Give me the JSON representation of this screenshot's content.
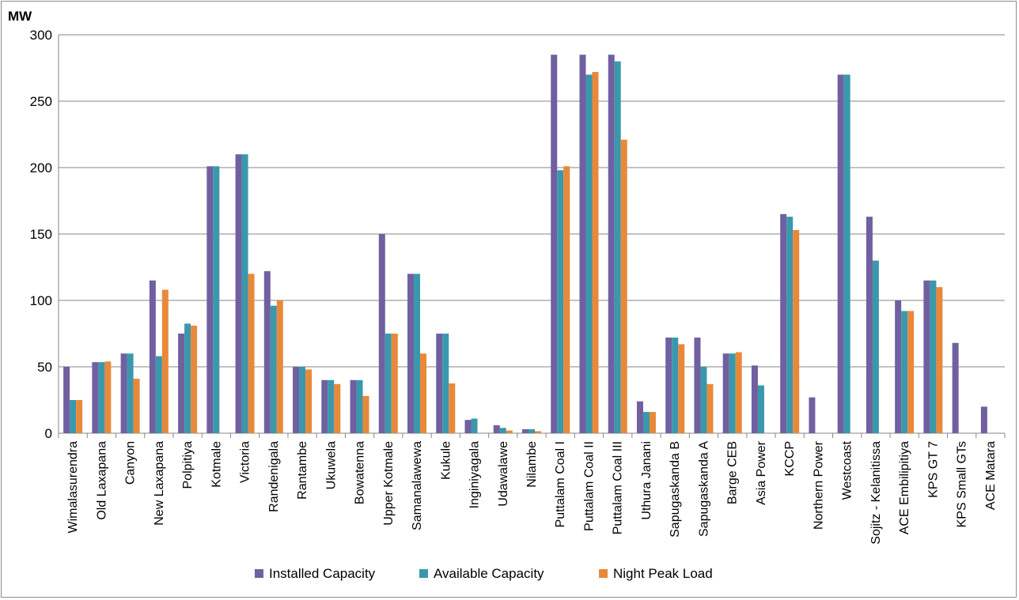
{
  "chart_data": {
    "type": "bar",
    "title": "",
    "ylabel": "MW",
    "xlabel": "",
    "ylim": [
      0,
      300
    ],
    "yticks": [
      0,
      50,
      100,
      150,
      200,
      250,
      300
    ],
    "grid": true,
    "legend_position": "bottom",
    "categories": [
      "Wimalasurendra",
      "Old Laxapana",
      "Canyon",
      "New Laxapana",
      "Polpitiya",
      "Kotmale",
      "Victoria",
      "Randenigala",
      "Rantambe",
      "Ukuwela",
      "Bowatenna",
      "Upper Kotmale",
      "Samanalawewa",
      "Kukule",
      "Inginiyagala",
      "Udawalawe",
      "Nilambe",
      "Puttalam Coal I",
      "Puttalam Coal II",
      "Puttalam Coal III",
      "Uthura Janani",
      "Sapugaskanda B",
      "Sapugaskanda A",
      "Barge CEB",
      "Asia Power",
      "KCCP",
      "Northern Power",
      "Westcoast",
      "Sojitz - Kelanitissa",
      "ACE Embilipitiya",
      "KPS GT 7",
      "KPS Small GTs",
      "ACE Matara"
    ],
    "series": [
      {
        "name": "Installed Capacity",
        "color": "#7060A0",
        "values": [
          50,
          53.5,
          60,
          115,
          75,
          201,
          210,
          122,
          50,
          40,
          40,
          150,
          120,
          75,
          10,
          6,
          3,
          285,
          285,
          285,
          24,
          72,
          72,
          60,
          51,
          165,
          27,
          270,
          163,
          100,
          115,
          68,
          20
        ]
      },
      {
        "name": "Available Capacity",
        "color": "#3A98AC",
        "values": [
          25,
          53.5,
          60,
          58,
          82.5,
          201,
          210,
          96,
          50,
          40,
          40,
          75,
          120,
          75,
          11,
          4,
          3,
          198,
          270,
          280,
          16,
          72,
          50,
          60,
          36,
          163,
          null,
          270,
          130,
          92,
          115,
          null,
          null
        ]
      },
      {
        "name": "Night Peak Load",
        "color": "#E8893A",
        "values": [
          25,
          54,
          41,
          108,
          81,
          null,
          120,
          100,
          48,
          37,
          28,
          75,
          60,
          37.5,
          null,
          2,
          1.5,
          201,
          272,
          221,
          16,
          67,
          37,
          61,
          null,
          153,
          null,
          null,
          null,
          92,
          110,
          null,
          null
        ]
      }
    ]
  }
}
